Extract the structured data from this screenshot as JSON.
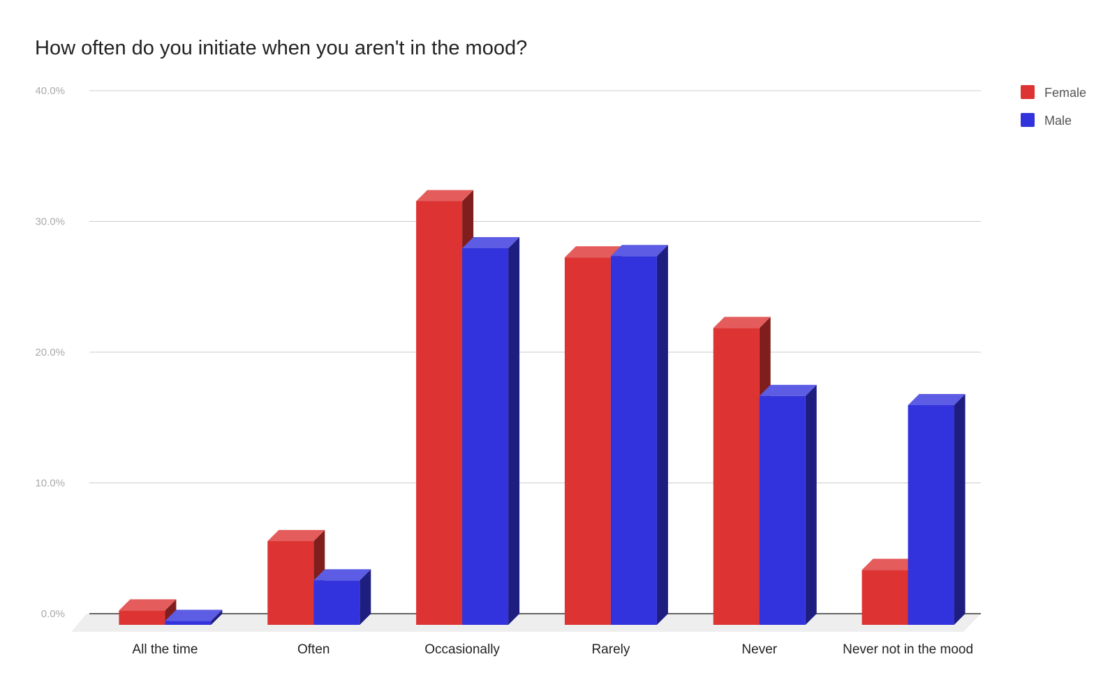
{
  "chart_data": {
    "type": "bar",
    "style": "3d",
    "title": "How often do you initiate when you aren't in the mood?",
    "xlabel": "",
    "ylabel": "",
    "ylim": [
      0,
      40
    ],
    "yticks": [
      "0.0%",
      "10.0%",
      "20.0%",
      "30.0%",
      "40.0%"
    ],
    "grid": true,
    "legend_position": "top-right",
    "categories": [
      "All the time",
      "Often",
      "Occasionally",
      "Rarely",
      "Never",
      "Never not in the mood"
    ],
    "series": [
      {
        "name": "Female",
        "color": "#dd3333",
        "values": [
          1.1,
          6.4,
          32.4,
          28.1,
          22.7,
          4.2
        ]
      },
      {
        "name": "Male",
        "color": "#3333dd",
        "values": [
          0.3,
          3.4,
          28.8,
          28.2,
          17.5,
          16.8
        ]
      }
    ]
  }
}
